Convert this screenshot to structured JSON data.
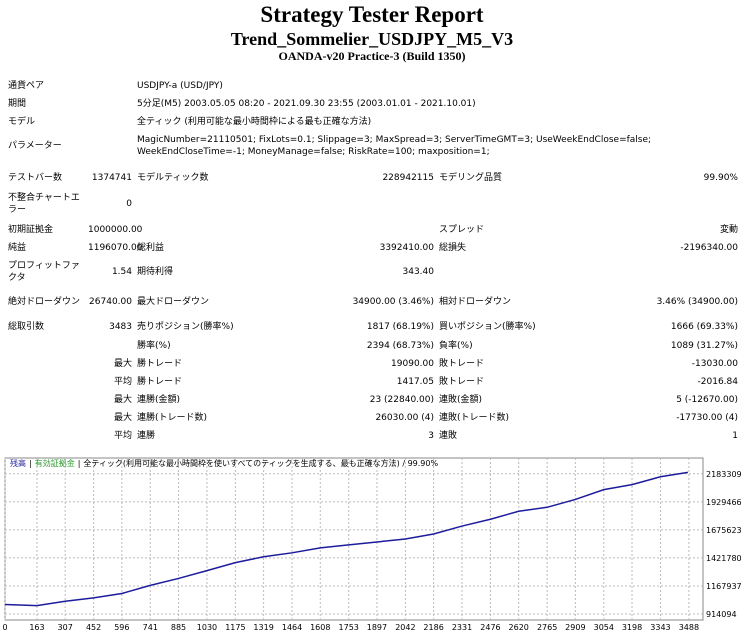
{
  "report": {
    "header": {
      "title": "Strategy Tester Report",
      "subtitle": "Trend_Sommelier_USDJPY_M5_V3",
      "server": "OANDA-v20 Practice-3 (Build 1350)"
    },
    "info": [
      [
        "通貨ペア",
        "USDJPY-a (USD/JPY)"
      ],
      [
        "期間",
        "5分足(M5) 2003.05.05 08:20 - 2021.09.30 23:55 (2003.01.01 - 2021.10.01)"
      ],
      [
        "モデル",
        "全ティック (利用可能な最小時間枠による最も正確な方法)"
      ],
      [
        "パラメーター",
        "MagicNumber=21110501; FixLots=0.1; Slippage=3; MaxSpread=3; ServerTimeGMT=3; UseWeekEndClose=false; WeekEndCloseTime=-1; MoneyManage=false; RiskRate=100; maxposition=1;"
      ]
    ],
    "stats": [
      [
        "テストバー数",
        "1374741",
        "モデルティック数",
        "228942115",
        "モデリング品質",
        "99.90%"
      ],
      [
        "不整合チャートエラー",
        "0",
        null,
        null,
        null,
        null
      ],
      [
        "初期証拠金",
        "1000000.00",
        null,
        null,
        "スプレッド",
        "変動"
      ],
      [
        "純益",
        "1196070.00",
        "総利益",
        "3392410.00",
        "総損失",
        "-2196340.00"
      ],
      [
        "プロフィットファクタ",
        "1.54",
        "期待利得",
        "343.40",
        null,
        null
      ],
      [
        "絶対ドローダウン",
        "26740.00",
        "最大ドローダウン",
        "34900.00 (3.46%)",
        "相対ドローダウン",
        "3.46% (34900.00)"
      ],
      [
        "総取引数",
        "3483",
        "売りポジション(勝率%)",
        "1817 (68.19%)",
        "買いポジション(勝率%)",
        "1666 (69.33%)"
      ],
      [
        null,
        null,
        "勝率(%)",
        "2394 (68.73%)",
        "負率(%)",
        "1089 (31.27%)"
      ],
      [
        null,
        "最大",
        "勝トレード",
        "19090.00",
        "敗トレード",
        "-13030.00"
      ],
      [
        null,
        "平均",
        "勝トレード",
        "1417.05",
        "敗トレード",
        "-2016.84"
      ],
      [
        null,
        "最大",
        "連勝(金額)",
        "23 (22840.00)",
        "連敗(金額)",
        "5 (-12670.00)"
      ],
      [
        null,
        "最大",
        "連勝(トレード数)",
        "26030.00 (4)",
        "連敗(トレード数)",
        "-17730.00 (4)"
      ],
      [
        null,
        "平均",
        "連勝",
        "3",
        "連敗",
        "1"
      ]
    ]
  },
  "chart_data": {
    "type": "line",
    "legend_extra": [
      {
        "name": "有効証拠金",
        "color": "#2e9a2e"
      }
    ],
    "subtitle": "全ティック(利用可能な最小時間枠を使いすべてのティックを生成する、最も正確な方法) / 99.90%",
    "x": [
      0,
      163,
      307,
      452,
      596,
      741,
      885,
      1030,
      1175,
      1319,
      1464,
      1608,
      1753,
      1897,
      2042,
      2186,
      2331,
      2476,
      2620,
      2765,
      2909,
      3054,
      3198,
      3343,
      3483
    ],
    "series": [
      {
        "name": "残高",
        "color": "#1c1c9c",
        "values": [
          1000000,
          990000,
          1030000,
          1060000,
          1100000,
          1173000,
          1236000,
          1307000,
          1379000,
          1432000,
          1468000,
          1513000,
          1540000,
          1566000,
          1593000,
          1638000,
          1710000,
          1772000,
          1844000,
          1880000,
          1951000,
          2040000,
          2085000,
          2156000,
          2196070
        ]
      }
    ],
    "xlim": [
      0,
      3560
    ],
    "ylim": [
      860000,
      2326000
    ],
    "xticks": [
      0,
      163,
      307,
      452,
      596,
      741,
      885,
      1030,
      1175,
      1319,
      1464,
      1608,
      1753,
      1897,
      2042,
      2186,
      2331,
      2476,
      2620,
      2765,
      2909,
      3054,
      3198,
      3343,
      3488
    ],
    "yticks": [
      914094,
      1167937,
      1421780,
      1675623,
      1929466,
      2183309
    ],
    "grid": true
  }
}
